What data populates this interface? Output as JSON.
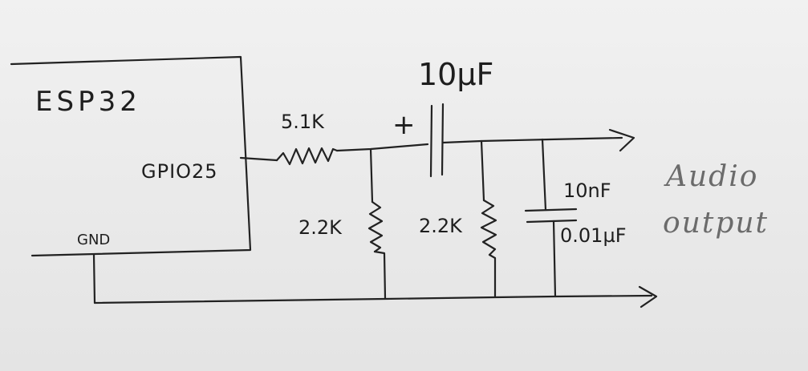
{
  "module": {
    "name": "ESP32"
  },
  "pins": {
    "gpio": "GPIO25",
    "gnd": "GND"
  },
  "components": {
    "series_resistor": "5.1K",
    "shunt_resistor_1": "2.2K",
    "shunt_resistor_2": "2.2K",
    "coupling_capacitor": "10µF",
    "capacitor_polarity": "+",
    "filter_capacitor": "10nF",
    "filter_capacitor_alt": "0.01µF"
  },
  "output": {
    "line1": "Audio",
    "line2": "output"
  },
  "colors": {
    "ink": "#1e1e1e",
    "pencil": "#6b6b6b",
    "paper": "#ececec"
  }
}
